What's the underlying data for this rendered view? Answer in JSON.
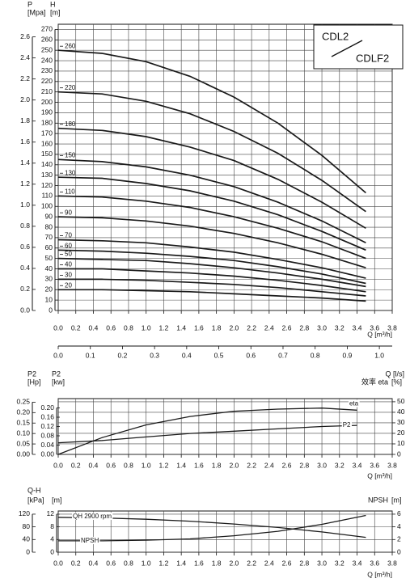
{
  "chart_data": [
    {
      "type": "line",
      "grid": true,
      "grid_axis": 1,
      "color": "#1a1a1a",
      "box_text": [
        "CDL2",
        "CDLF2"
      ],
      "x_label": "Q [m³/h]",
      "xlim": [
        0,
        3.8
      ],
      "xticks": [
        {
          "value": 0,
          "label": "0.0"
        },
        0.2,
        0.4,
        0.6,
        0.8,
        {
          "value": 1,
          "label": "1.0"
        },
        1.2,
        1.4,
        1.6,
        1.8,
        {
          "value": 2,
          "label": "2.0"
        },
        2.2,
        2.4,
        2.6,
        2.8,
        {
          "value": 3,
          "label": "3.0"
        },
        3.2,
        3.4,
        3.6,
        3.8
      ],
      "x2lim": [
        0,
        1.04
      ],
      "x2ticks": [
        {
          "value": 0,
          "label": "0.0"
        },
        0.1,
        0.2,
        0.3,
        0.4,
        0.5,
        0.6,
        0.7,
        0.8,
        0.9,
        {
          "value": 1,
          "label": "1.0"
        }
      ],
      "axes": [
        {
          "label": "P",
          "unit": "[Mpa]",
          "side": "left",
          "lim": [
            0,
            2.72
          ],
          "ticks": [
            {
              "value": 0,
              "label": "0.0"
            },
            0.2,
            0.4,
            0.6,
            0.8,
            {
              "value": 1,
              "label": "1.0"
            },
            1.2,
            1.4,
            1.6,
            1.8,
            {
              "value": 2,
              "label": "2.0"
            },
            2.2,
            2.4,
            2.6
          ]
        },
        {
          "label": "H",
          "unit": "[m]",
          "side": "left",
          "lim": [
            0,
            275
          ],
          "ticks": [
            0,
            10,
            20,
            30,
            40,
            50,
            60,
            70,
            80,
            90,
            100,
            110,
            120,
            130,
            140,
            150,
            160,
            170,
            180,
            190,
            200,
            210,
            220,
            230,
            240,
            250,
            260,
            270
          ]
        }
      ],
      "x": [
        0,
        0.5,
        1,
        1.5,
        2,
        2.5,
        3,
        3.5
      ],
      "series": [
        {
          "name": "260",
          "axis": 1,
          "values": [
            250,
            247,
            239,
            225,
            205,
            180,
            149,
            113
          ]
        },
        {
          "name": "220",
          "axis": 1,
          "values": [
            210,
            208,
            201,
            189,
            172,
            151,
            125,
            95
          ]
        },
        {
          "name": "180",
          "axis": 1,
          "values": [
            175,
            173,
            167,
            157,
            144,
            126,
            104,
            79
          ]
        },
        {
          "name": "150",
          "axis": 1,
          "values": [
            145,
            143,
            138,
            130,
            119,
            104,
            86,
            65
          ]
        },
        {
          "name": "130",
          "axis": 1,
          "values": [
            128,
            127,
            122,
            115,
            105,
            92,
            76,
            58
          ]
        },
        {
          "name": "110",
          "axis": 1,
          "values": [
            110,
            109,
            105,
            99,
            90,
            79,
            66,
            50
          ]
        },
        {
          "name": "90",
          "axis": 1,
          "values": [
            90,
            89,
            86,
            81,
            74,
            65,
            54,
            41
          ]
        },
        {
          "name": "70",
          "axis": 1,
          "values": [
            68,
            67,
            65,
            61,
            56,
            49,
            41,
            31
          ]
        },
        {
          "name": "60",
          "axis": 1,
          "values": [
            58,
            57,
            55,
            52,
            48,
            42,
            35,
            26
          ]
        },
        {
          "name": "50",
          "axis": 1,
          "values": [
            50,
            49,
            48,
            45,
            41,
            36,
            30,
            23
          ]
        },
        {
          "name": "40",
          "axis": 1,
          "values": [
            40,
            40,
            38,
            36,
            33,
            29,
            24,
            18
          ]
        },
        {
          "name": "30",
          "axis": 1,
          "values": [
            30,
            30,
            29,
            27,
            25,
            22,
            18,
            14
          ]
        },
        {
          "name": "20",
          "axis": 1,
          "values": [
            20,
            20,
            19,
            18,
            16,
            14,
            12,
            9
          ]
        }
      ]
    },
    {
      "type": "line",
      "grid": true,
      "grid_axis": 2,
      "color": "#1a1a1a",
      "top_right_label": "Q [l/s]",
      "x_label": "Q [m³/h]",
      "xlim": [
        0,
        3.8
      ],
      "xticks": [
        {
          "value": 0,
          "label": "0.0"
        },
        0.2,
        0.4,
        0.6,
        0.8,
        {
          "value": 1,
          "label": "1.0"
        },
        1.2,
        1.4,
        1.6,
        1.8,
        {
          "value": 2,
          "label": "2.0"
        },
        2.2,
        2.4,
        2.6,
        2.8,
        {
          "value": 3,
          "label": "3.0"
        },
        3.2,
        3.4,
        3.6,
        3.8
      ],
      "axes": [
        {
          "label": "P2",
          "unit": "[Hp]",
          "side": "left",
          "lim": [
            0,
            0.267
          ],
          "ticks": [
            {
              "value": 0,
              "label": "0.00"
            },
            0.05,
            {
              "value": 0.1,
              "label": "0.10"
            },
            0.15,
            {
              "value": 0.2,
              "label": "0.20"
            },
            0.25
          ]
        },
        {
          "label": "P2",
          "unit": "[kw]",
          "side": "left",
          "lim": [
            0,
            0.24
          ],
          "ticks": [
            {
              "value": 0,
              "label": "0.00"
            },
            0.04,
            0.08,
            0.12,
            0.16,
            {
              "value": 0.2,
              "label": "0.20"
            }
          ]
        },
        {
          "label": "效率 eta",
          "unit": "[%]",
          "side": "right",
          "lim": [
            0,
            53
          ],
          "ticks": [
            0,
            10,
            20,
            30,
            40,
            50
          ]
        }
      ],
      "x": [
        0,
        0.5,
        1,
        1.5,
        2,
        2.5,
        3,
        3.4
      ],
      "series": [
        {
          "name": "eta",
          "axis": 2,
          "values": [
            0,
            16,
            28,
            36,
            41,
            43,
            44,
            42
          ]
        },
        {
          "name": "P2",
          "axis": 1,
          "values": [
            0.05,
            0.06,
            0.075,
            0.09,
            0.1,
            0.11,
            0.12,
            0.125
          ]
        }
      ]
    },
    {
      "type": "line",
      "grid": true,
      "grid_axis": 1,
      "color": "#1a1a1a",
      "x_label": "Q [m³/h]",
      "xlim": [
        0,
        3.8
      ],
      "xticks": [
        {
          "value": 0,
          "label": "0.0"
        },
        0.2,
        0.4,
        0.6,
        0.8,
        {
          "value": 1,
          "label": "1.0"
        },
        1.2,
        1.4,
        1.6,
        1.8,
        {
          "value": 2,
          "label": "2.0"
        },
        2.2,
        2.4,
        2.6,
        2.8,
        {
          "value": 3,
          "label": "3.0"
        },
        3.2,
        3.4,
        3.6,
        3.8
      ],
      "axes": [
        {
          "label": "Q-H",
          "unit": "[kPa]",
          "side": "left",
          "lim": [
            0,
            130
          ],
          "ticks": [
            0,
            40,
            80,
            120
          ]
        },
        {
          "unit": "[m]",
          "side": "left",
          "lim": [
            0,
            13
          ],
          "ticks": [
            0,
            4,
            8,
            12
          ]
        },
        {
          "label": "NPSH",
          "unit": "[m]",
          "side": "right",
          "lim": [
            0,
            6.5
          ],
          "ticks": [
            0,
            2,
            4,
            6
          ]
        }
      ],
      "x": [
        0,
        0.5,
        1,
        1.5,
        2,
        2.5,
        3,
        3.5
      ],
      "series": [
        {
          "name": "QH 2900 rpm",
          "axis": 1,
          "values": [
            11,
            10.8,
            10.4,
            9.8,
            8.9,
            7.8,
            6.4,
            4.7
          ]
        },
        {
          "name": "NPSH",
          "axis": 2,
          "values": [
            1.8,
            1.8,
            1.9,
            2.1,
            2.6,
            3.3,
            4.4,
            5.8
          ]
        }
      ]
    }
  ]
}
